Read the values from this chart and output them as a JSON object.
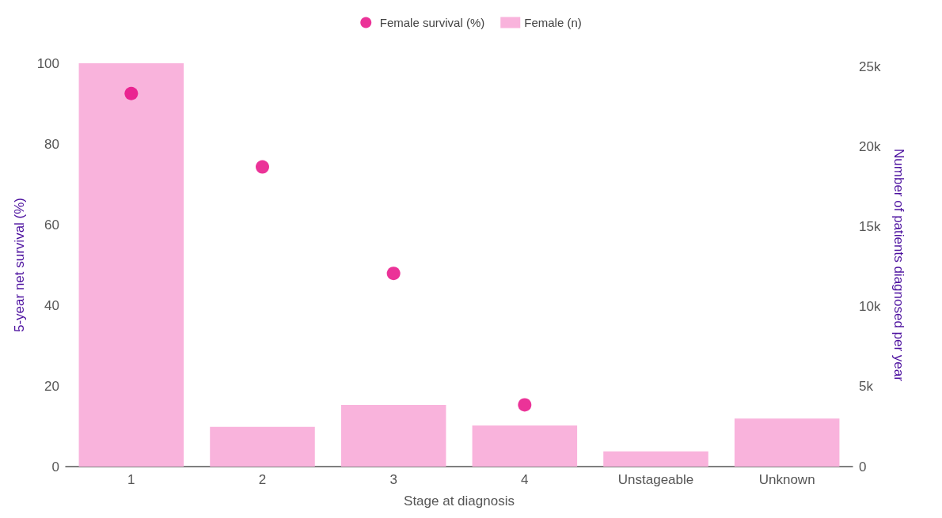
{
  "chart_data": {
    "type": "bar",
    "xlabel": "Stage at diagnosis",
    "ylabel": "5-year net survival (%)",
    "y2label": "Number of patients diagnosed per year",
    "categories": [
      "1",
      "2",
      "3",
      "4",
      "Unstageable",
      "Unknown"
    ],
    "series": [
      {
        "name": "Female survival (%)",
        "type": "scatter",
        "color": "#e6007e",
        "values": [
          92.5,
          74.3,
          47.9,
          15.3,
          null,
          null
        ]
      },
      {
        "name": "Female (n)",
        "axis": "y2",
        "color": "#f9b3dc",
        "values": [
          25200,
          2480,
          3860,
          2570,
          950,
          3000
        ]
      }
    ],
    "ylim": [
      0,
      100
    ],
    "yticks": [
      0,
      20,
      40,
      60,
      80,
      100
    ],
    "y2lim": [
      0,
      25200
    ],
    "y2ticks": [
      0,
      {
        "value": 5000,
        "label": "5k"
      },
      {
        "value": 10000,
        "label": "10k"
      },
      {
        "value": 15000,
        "label": "15k"
      },
      {
        "value": 20000,
        "label": "20k"
      },
      {
        "value": 25000,
        "label": "25k"
      }
    ],
    "marker": "circle",
    "legend": "top",
    "grid": false
  }
}
